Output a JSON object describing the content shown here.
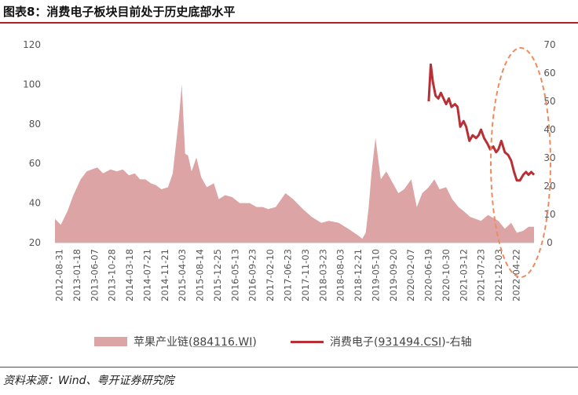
{
  "figure_title": "图表8：消费电子板块目前处于历史底部水平",
  "source": "资料来源：Wind、粤开证券研究院",
  "legend": {
    "series1_name": "苹果产业链",
    "series1_code": "884116.WI",
    "series1_suffix": "",
    "series2_name": "消费电子",
    "series2_code": "931494.CSI",
    "series2_suffix": "-右轴"
  },
  "colors": {
    "area": "#dca4a4",
    "line": "#b83036",
    "highlight": "#f08a5d",
    "title_rule": "#b21f24"
  },
  "chart_data": {
    "type": "area",
    "x_tick_labels": [
      "2012-08-31",
      "2013-01-18",
      "2013-06-07",
      "2013-10-28",
      "2014-03-18",
      "2014-07-21",
      "2014-11-21",
      "2015-04-03",
      "2015-08-14",
      "2015-12-25",
      "2016-05-13",
      "2016-09-23",
      "2017-02-10",
      "2017-06-23",
      "2017-11-03",
      "2018-03-23",
      "2018-08-03",
      "2018-12-21",
      "2019-05-10",
      "2019-09-20",
      "2020-02-07",
      "2020-06-19",
      "2020-10-30",
      "2021-03-12",
      "2021-07-23",
      "2021-12-03",
      "2022-04-22"
    ],
    "left_axis": {
      "ylim": [
        20,
        120
      ],
      "ticks": [
        20,
        40,
        60,
        80,
        100,
        120
      ]
    },
    "right_axis": {
      "ylim": [
        0,
        70
      ],
      "ticks": [
        0,
        10,
        20,
        30,
        40,
        50,
        60,
        70
      ]
    },
    "series": [
      {
        "name": "苹果产业链(884116.WI)",
        "axis": "left",
        "style": "area",
        "x": [
          "2012-08-31",
          "2012-10-15",
          "2012-12-05",
          "2013-01-18",
          "2013-03-15",
          "2013-04-30",
          "2013-06-07",
          "2013-07-20",
          "2013-09-01",
          "2013-10-28",
          "2013-12-15",
          "2014-01-30",
          "2014-03-18",
          "2014-05-01",
          "2014-06-10",
          "2014-07-21",
          "2014-09-01",
          "2014-10-10",
          "2014-11-21",
          "2015-01-10",
          "2015-02-15",
          "2015-03-15",
          "2015-04-03",
          "2015-04-25",
          "2015-05-20",
          "2015-06-12",
          "2015-07-08",
          "2015-08-14",
          "2015-09-20",
          "2015-11-01",
          "2015-12-25",
          "2016-02-01",
          "2016-03-20",
          "2016-05-13",
          "2016-07-10",
          "2016-09-23",
          "2016-11-15",
          "2017-01-01",
          "2017-02-10",
          "2017-04-10",
          "2017-06-23",
          "2017-08-20",
          "2017-11-03",
          "2018-01-10",
          "2018-03-23",
          "2018-05-20",
          "2018-08-03",
          "2018-10-15",
          "2018-12-21",
          "2019-01-30",
          "2019-02-25",
          "2019-03-20",
          "2019-04-10",
          "2019-05-10",
          "2019-06-20",
          "2019-08-01",
          "2019-09-20",
          "2019-11-01",
          "2019-12-15",
          "2020-02-07",
          "2020-03-20",
          "2020-05-01",
          "2020-06-19",
          "2020-08-01",
          "2020-09-10",
          "2020-10-30",
          "2020-12-15",
          "2021-02-01",
          "2021-03-12",
          "2021-05-01",
          "2021-07-23",
          "2021-09-15",
          "2021-12-03",
          "2022-01-20",
          "2022-03-10",
          "2022-04-22",
          "2022-06-10",
          "2022-07-20",
          "2022-08-31"
        ],
        "values": [
          32,
          29,
          36,
          44,
          52,
          56,
          57,
          58,
          55,
          57,
          56,
          57,
          54,
          55,
          52,
          52,
          50,
          49,
          47,
          48,
          55,
          72,
          83,
          100,
          65,
          64,
          56,
          63,
          53,
          48,
          50,
          42,
          44,
          43,
          40,
          40,
          38,
          38,
          37,
          38,
          45,
          42,
          37,
          33,
          30,
          31,
          30,
          27,
          24,
          22,
          25,
          38,
          55,
          73,
          52,
          56,
          50,
          45,
          47,
          52,
          38,
          45,
          48,
          52,
          47,
          48,
          42,
          38,
          36,
          33,
          31,
          34,
          31,
          27,
          30,
          25,
          26,
          28,
          28
        ]
      },
      {
        "name": "消费电子(931494.CSI)-右轴",
        "axis": "right",
        "style": "line",
        "x": [
          "2020-06-19",
          "2020-07-05",
          "2020-07-20",
          "2020-08-10",
          "2020-09-01",
          "2020-09-20",
          "2020-10-10",
          "2020-10-30",
          "2020-11-20",
          "2020-12-10",
          "2021-01-05",
          "2021-01-25",
          "2021-02-15",
          "2021-03-12",
          "2021-04-01",
          "2021-04-25",
          "2021-05-20",
          "2021-06-15",
          "2021-07-05",
          "2021-07-23",
          "2021-08-15",
          "2021-09-10",
          "2021-10-01",
          "2021-10-25",
          "2021-11-15",
          "2021-12-03",
          "2021-12-25",
          "2022-01-20",
          "2022-02-15",
          "2022-03-10",
          "2022-04-01",
          "2022-04-22",
          "2022-05-15",
          "2022-06-10",
          "2022-07-01",
          "2022-07-20",
          "2022-08-10",
          "2022-08-31"
        ],
        "values": [
          50,
          63,
          57,
          52,
          51,
          53,
          51,
          49,
          51,
          48,
          49,
          48,
          41,
          43,
          41,
          36,
          38,
          37,
          38,
          40,
          37,
          35,
          33,
          34,
          32,
          33,
          36,
          32,
          31,
          29,
          25,
          22,
          22,
          24,
          25,
          24,
          25,
          24
        ]
      }
    ]
  }
}
